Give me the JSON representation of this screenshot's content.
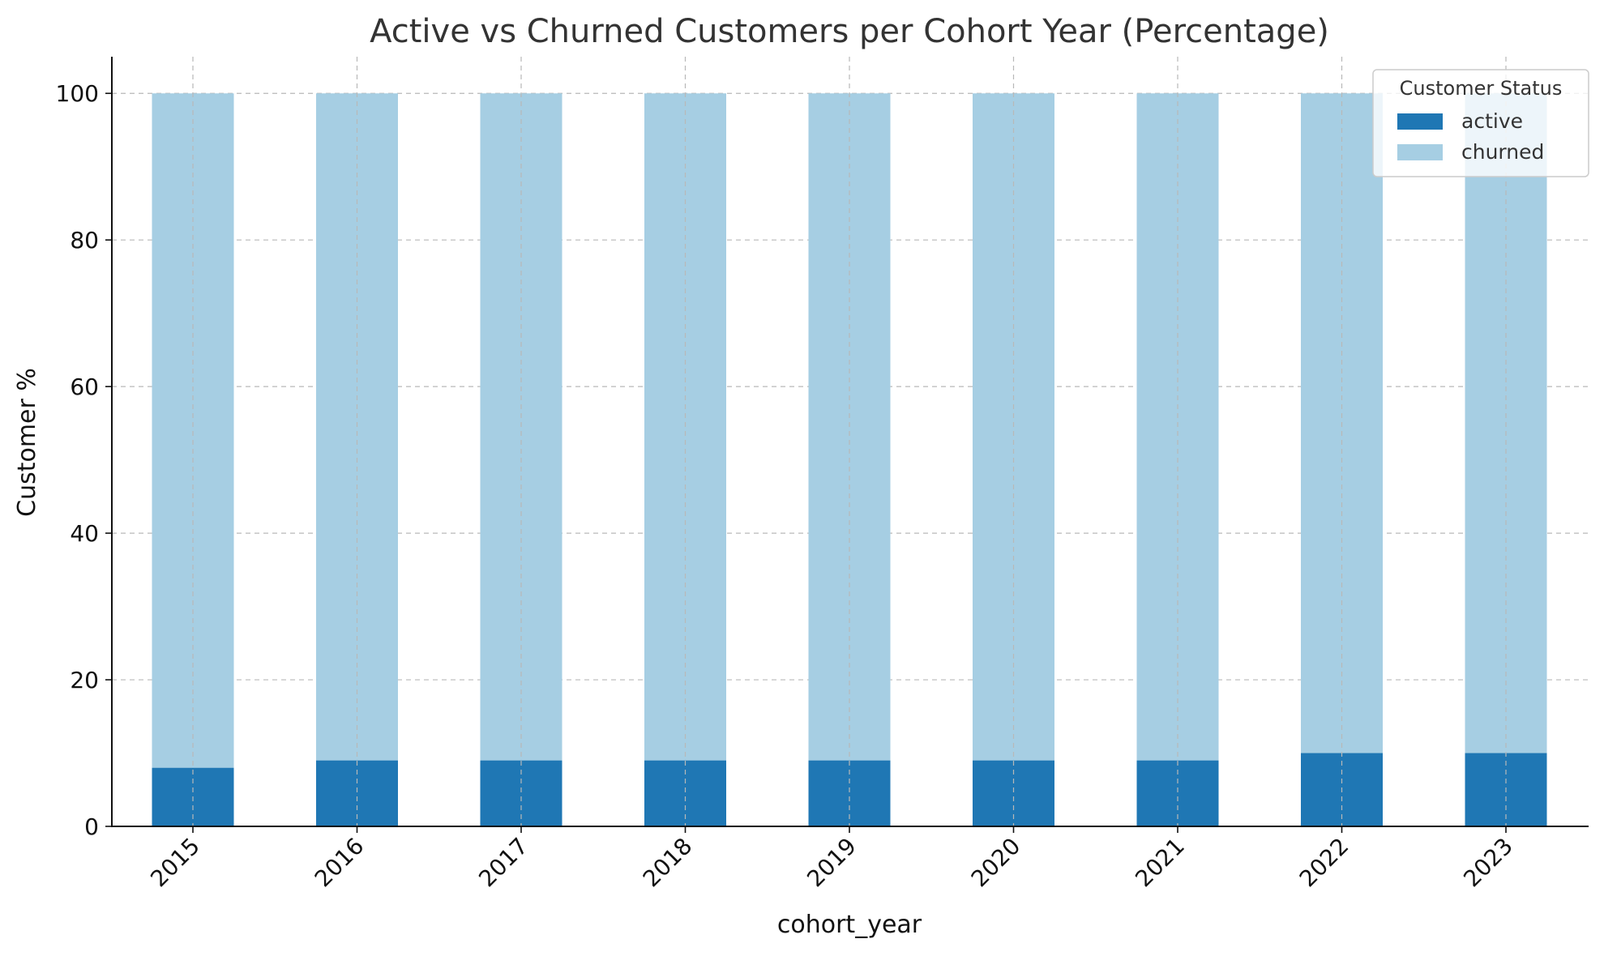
{
  "chart_data": {
    "type": "bar",
    "stacked": true,
    "title": "Active vs Churned Customers per Cohort Year (Percentage)",
    "xlabel": "cohort_year",
    "ylabel": "Customer %",
    "categories": [
      "2015",
      "2016",
      "2017",
      "2018",
      "2019",
      "2020",
      "2021",
      "2022",
      "2023"
    ],
    "series": [
      {
        "name": "active",
        "color": "#1f77b4",
        "values": [
          8,
          9,
          9,
          9,
          9,
          9,
          9,
          10,
          10
        ]
      },
      {
        "name": "churned",
        "color": "#a6cee3",
        "values": [
          92,
          91,
          91,
          91,
          91,
          91,
          91,
          90,
          90
        ]
      }
    ],
    "ylim": [
      0,
      105
    ],
    "yticks": [
      0,
      20,
      40,
      60,
      80,
      100
    ],
    "grid": true,
    "legend": {
      "title": "Customer Status",
      "placement": "top-right"
    }
  }
}
